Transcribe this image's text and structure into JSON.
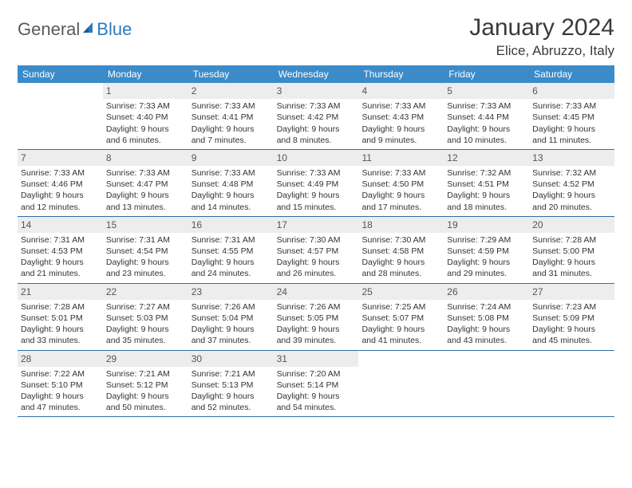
{
  "logo": {
    "text1": "General",
    "text2": "Blue"
  },
  "title": "January 2024",
  "location": "Elice, Abruzzo, Italy",
  "colors": {
    "header_bg": "#3b8bc9",
    "header_text": "#ffffff",
    "daynum_bg": "#ededed",
    "row_border": "#2f6fa8",
    "body_text": "#333333",
    "logo_gray": "#5a5a5a",
    "logo_blue": "#2f7bbf"
  },
  "weekdays": [
    "Sunday",
    "Monday",
    "Tuesday",
    "Wednesday",
    "Thursday",
    "Friday",
    "Saturday"
  ],
  "weeks": [
    [
      null,
      {
        "n": "1",
        "sr": "7:33 AM",
        "ss": "4:40 PM",
        "dl": "9 hours and 6 minutes."
      },
      {
        "n": "2",
        "sr": "7:33 AM",
        "ss": "4:41 PM",
        "dl": "9 hours and 7 minutes."
      },
      {
        "n": "3",
        "sr": "7:33 AM",
        "ss": "4:42 PM",
        "dl": "9 hours and 8 minutes."
      },
      {
        "n": "4",
        "sr": "7:33 AM",
        "ss": "4:43 PM",
        "dl": "9 hours and 9 minutes."
      },
      {
        "n": "5",
        "sr": "7:33 AM",
        "ss": "4:44 PM",
        "dl": "9 hours and 10 minutes."
      },
      {
        "n": "6",
        "sr": "7:33 AM",
        "ss": "4:45 PM",
        "dl": "9 hours and 11 minutes."
      }
    ],
    [
      {
        "n": "7",
        "sr": "7:33 AM",
        "ss": "4:46 PM",
        "dl": "9 hours and 12 minutes."
      },
      {
        "n": "8",
        "sr": "7:33 AM",
        "ss": "4:47 PM",
        "dl": "9 hours and 13 minutes."
      },
      {
        "n": "9",
        "sr": "7:33 AM",
        "ss": "4:48 PM",
        "dl": "9 hours and 14 minutes."
      },
      {
        "n": "10",
        "sr": "7:33 AM",
        "ss": "4:49 PM",
        "dl": "9 hours and 15 minutes."
      },
      {
        "n": "11",
        "sr": "7:33 AM",
        "ss": "4:50 PM",
        "dl": "9 hours and 17 minutes."
      },
      {
        "n": "12",
        "sr": "7:32 AM",
        "ss": "4:51 PM",
        "dl": "9 hours and 18 minutes."
      },
      {
        "n": "13",
        "sr": "7:32 AM",
        "ss": "4:52 PM",
        "dl": "9 hours and 20 minutes."
      }
    ],
    [
      {
        "n": "14",
        "sr": "7:31 AM",
        "ss": "4:53 PM",
        "dl": "9 hours and 21 minutes."
      },
      {
        "n": "15",
        "sr": "7:31 AM",
        "ss": "4:54 PM",
        "dl": "9 hours and 23 minutes."
      },
      {
        "n": "16",
        "sr": "7:31 AM",
        "ss": "4:55 PM",
        "dl": "9 hours and 24 minutes."
      },
      {
        "n": "17",
        "sr": "7:30 AM",
        "ss": "4:57 PM",
        "dl": "9 hours and 26 minutes."
      },
      {
        "n": "18",
        "sr": "7:30 AM",
        "ss": "4:58 PM",
        "dl": "9 hours and 28 minutes."
      },
      {
        "n": "19",
        "sr": "7:29 AM",
        "ss": "4:59 PM",
        "dl": "9 hours and 29 minutes."
      },
      {
        "n": "20",
        "sr": "7:28 AM",
        "ss": "5:00 PM",
        "dl": "9 hours and 31 minutes."
      }
    ],
    [
      {
        "n": "21",
        "sr": "7:28 AM",
        "ss": "5:01 PM",
        "dl": "9 hours and 33 minutes."
      },
      {
        "n": "22",
        "sr": "7:27 AM",
        "ss": "5:03 PM",
        "dl": "9 hours and 35 minutes."
      },
      {
        "n": "23",
        "sr": "7:26 AM",
        "ss": "5:04 PM",
        "dl": "9 hours and 37 minutes."
      },
      {
        "n": "24",
        "sr": "7:26 AM",
        "ss": "5:05 PM",
        "dl": "9 hours and 39 minutes."
      },
      {
        "n": "25",
        "sr": "7:25 AM",
        "ss": "5:07 PM",
        "dl": "9 hours and 41 minutes."
      },
      {
        "n": "26",
        "sr": "7:24 AM",
        "ss": "5:08 PM",
        "dl": "9 hours and 43 minutes."
      },
      {
        "n": "27",
        "sr": "7:23 AM",
        "ss": "5:09 PM",
        "dl": "9 hours and 45 minutes."
      }
    ],
    [
      {
        "n": "28",
        "sr": "7:22 AM",
        "ss": "5:10 PM",
        "dl": "9 hours and 47 minutes."
      },
      {
        "n": "29",
        "sr": "7:21 AM",
        "ss": "5:12 PM",
        "dl": "9 hours and 50 minutes."
      },
      {
        "n": "30",
        "sr": "7:21 AM",
        "ss": "5:13 PM",
        "dl": "9 hours and 52 minutes."
      },
      {
        "n": "31",
        "sr": "7:20 AM",
        "ss": "5:14 PM",
        "dl": "9 hours and 54 minutes."
      },
      null,
      null,
      null
    ]
  ],
  "labels": {
    "sunrise": "Sunrise:",
    "sunset": "Sunset:",
    "daylight": "Daylight:"
  }
}
